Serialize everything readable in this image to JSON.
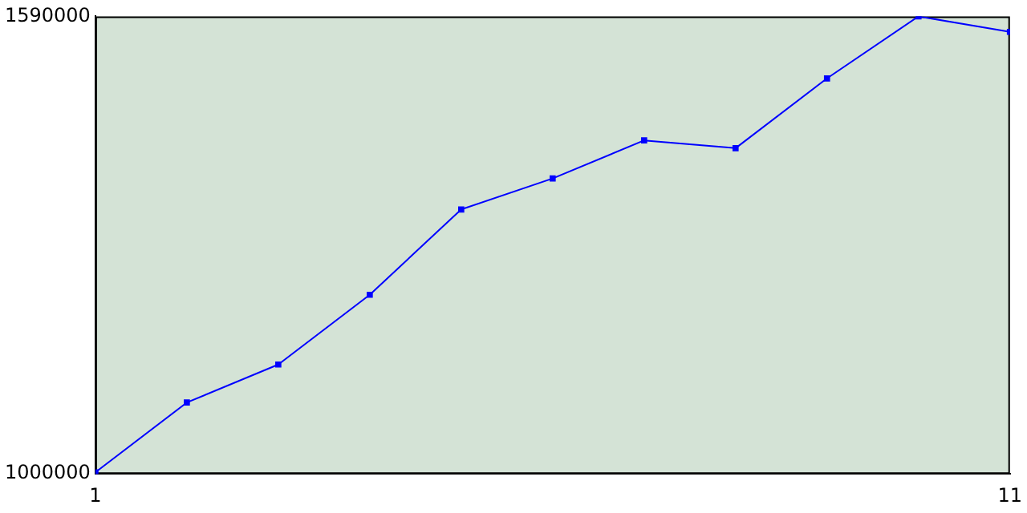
{
  "chart_data": {
    "type": "line",
    "x": [
      1,
      2,
      3,
      4,
      5,
      6,
      7,
      8,
      9,
      10,
      11
    ],
    "series": [
      {
        "color": "#0000ff",
        "values": [
          1002000,
          1092000,
          1141000,
          1231000,
          1341000,
          1381000,
          1430000,
          1420000,
          1510000,
          1590000,
          1570000
        ]
      }
    ],
    "xlim": [
      1,
      11
    ],
    "xticks": [
      1,
      11
    ],
    "ylim": [
      1000000,
      1590000
    ],
    "yticks": [
      1000000,
      1590000
    ],
    "grid": false,
    "legend": false,
    "marker": "square",
    "line_style": "solid"
  }
}
